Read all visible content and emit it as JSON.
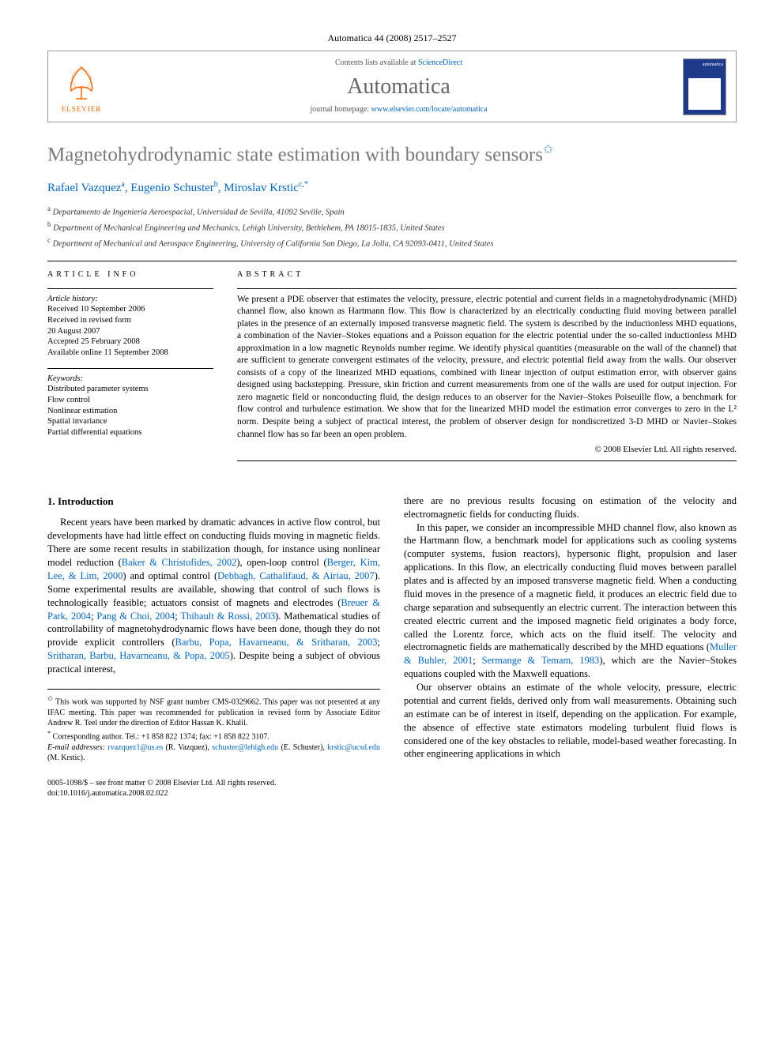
{
  "header": {
    "citation": "Automatica 44 (2008) 2517–2527",
    "contents_prefix": "Contents lists available at ",
    "contents_link": "ScienceDirect",
    "journal_name": "Automatica",
    "homepage_prefix": "journal homepage: ",
    "homepage_link": "www.elsevier.com/locate/automatica",
    "elsevier_label": "ELSEVIER",
    "cover_label": "automatica"
  },
  "title": "Magnetohydrodynamic state estimation with boundary sensors",
  "title_mark": "✩",
  "authors": [
    {
      "name": "Rafael Vazquez",
      "aff": "a",
      "extra": ""
    },
    {
      "name": "Eugenio Schuster",
      "aff": "b",
      "extra": ""
    },
    {
      "name": "Miroslav Krstic",
      "aff": "c",
      "extra": ",*"
    }
  ],
  "affiliations": [
    {
      "mark": "a",
      "text": "Departamento de Ingeniería Aeroespacial, Universidad de Sevilla, 41092 Seville, Spain"
    },
    {
      "mark": "b",
      "text": "Department of Mechanical Engineering and Mechanics, Lehigh University, Bethlehem, PA 18015-1835, United States"
    },
    {
      "mark": "c",
      "text": "Department of Mechanical and Aerospace Engineering, University of California San Diego, La Jolla, CA 92093-0411, United States"
    }
  ],
  "article_info": {
    "heading": "ARTICLE INFO",
    "history_label": "Article history:",
    "history": [
      "Received 10 September 2006",
      "Received in revised form",
      "20 August 2007",
      "Accepted 25 February 2008",
      "Available online 11 September 2008"
    ],
    "keywords_label": "Keywords:",
    "keywords": [
      "Distributed parameter systems",
      "Flow control",
      "Nonlinear estimation",
      "Spatial invariance",
      "Partial differential equations"
    ]
  },
  "abstract": {
    "heading": "ABSTRACT",
    "text": "We present a PDE observer that estimates the velocity, pressure, electric potential and current fields in a magnetohydrodynamic (MHD) channel flow, also known as Hartmann flow. This flow is characterized by an electrically conducting fluid moving between parallel plates in the presence of an externally imposed transverse magnetic field. The system is described by the inductionless MHD equations, a combination of the Navier–Stokes equations and a Poisson equation for the electric potential under the so-called inductionless MHD approximation in a low magnetic Reynolds number regime. We identify physical quantities (measurable on the wall of the channel) that are sufficient to generate convergent estimates of the velocity, pressure, and electric potential field away from the walls. Our observer consists of a copy of the linearized MHD equations, combined with linear injection of output estimation error, with observer gains designed using backstepping. Pressure, skin friction and current measurements from one of the walls are used for output injection. For zero magnetic field or nonconducting fluid, the design reduces to an observer for the Navier–Stokes Poiseuille flow, a benchmark for flow control and turbulence estimation. We show that for the linearized MHD model the estimation error converges to zero in the L² norm. Despite being a subject of practical interest, the problem of observer design for nondiscretized 3-D MHD or Navier–Stokes channel flow has so far been an open problem.",
    "copyright": "© 2008 Elsevier Ltd. All rights reserved."
  },
  "body": {
    "section1_heading": "1. Introduction",
    "col1_p1_a": "Recent years have been marked by dramatic advances in active flow control, but developments have had little effect on conducting fluids moving in magnetic fields. There are some recent results in stabilization though, for instance using nonlinear model reduction (",
    "col1_link1": "Baker & Christofides, 2002",
    "col1_p1_b": "), open-loop control (",
    "col1_link2": "Berger, Kim, Lee, & Lim, 2000",
    "col1_p1_c": ") and optimal control (",
    "col1_link3": "Debbagh, Cathalifaud, & Airiau, 2007",
    "col1_p1_d": "). Some experimental results are available, showing that control of such flows is technologically feasible; actuators consist of magnets and electrodes (",
    "col1_link4": "Breuer & Park, 2004",
    "col1_sep1": "; ",
    "col1_link5": "Pang & Choi, 2004",
    "col1_sep2": "; ",
    "col1_link6": "Thibault & Rossi, 2003",
    "col1_p1_e": "). Mathematical studies of controllability of magnetohydrodynamic flows have been done, though they do not provide explicit controllers (",
    "col1_link7": "Barbu, Popa, Havarneanu, & Sritharan, 2003",
    "col1_sep3": "; ",
    "col1_link8": "Sritharan, Barbu, Havarneanu, & Popa, 2005",
    "col1_p1_f": "). Despite being a subject of obvious practical interest,",
    "col2_p1": "there are no previous results focusing on estimation of the velocity and electromagnetic fields for conducting fluids.",
    "col2_p2_a": "In this paper, we consider an incompressible MHD channel flow, also known as the Hartmann flow, a benchmark model for applications such as cooling systems (computer systems, fusion reactors), hypersonic flight, propulsion and laser applications. In this flow, an electrically conducting fluid moves between parallel plates and is affected by an imposed transverse magnetic field. When a conducting fluid moves in the presence of a magnetic field, it produces an electric field due to charge separation and subsequently an electric current. The interaction between this created electric current and the imposed magnetic field originates a body force, called the Lorentz force, which acts on the fluid itself. The velocity and electromagnetic fields are mathematically described by the MHD equations (",
    "col2_link1": "Muller & Buhler, 2001",
    "col2_sep1": "; ",
    "col2_link2": "Sermange & Temam, 1983",
    "col2_p2_b": "), which are the Navier–Stokes equations coupled with the Maxwell equations.",
    "col2_p3": "Our observer obtains an estimate of the whole velocity, pressure, electric potential and current fields, derived only from wall measurements. Obtaining such an estimate can be of interest in itself, depending on the application. For example, the absence of effective state estimators modeling turbulent fluid flows is considered one of the key obstacles to reliable, model-based weather forecasting. In other engineering applications in which"
  },
  "footnotes": {
    "note1_mark": "✩",
    "note1": "This work was supported by NSF grant number CMS-0329662. This paper was not presented at any IFAC meeting. This paper was recommended for publication in revised form by Associate Editor Andrew R. Teel under the direction of Editor Hassan K. Khalil.",
    "note2_mark": "*",
    "note2": "Corresponding author. Tel.: +1 858 822 1374; fax: +1 858 822 3107.",
    "email_label": "E-mail addresses:",
    "emails": [
      {
        "addr": "rvazquez1@us.es",
        "person": " (R. Vazquez), "
      },
      {
        "addr": "schuster@lehigh.edu",
        "person": " (E. Schuster), "
      },
      {
        "addr": "krstic@ucsd.edu",
        "person": " (M. Krstic)."
      }
    ]
  },
  "footer": {
    "left1": "0005-1098/$ – see front matter © 2008 Elsevier Ltd. All rights reserved.",
    "left2": "doi:10.1016/j.automatica.2008.02.022"
  },
  "colors": {
    "link": "#0066cc",
    "title_gray": "#7a7a7a",
    "elsevier_orange": "#ff6600",
    "cover_blue": "#1e3a8a"
  }
}
